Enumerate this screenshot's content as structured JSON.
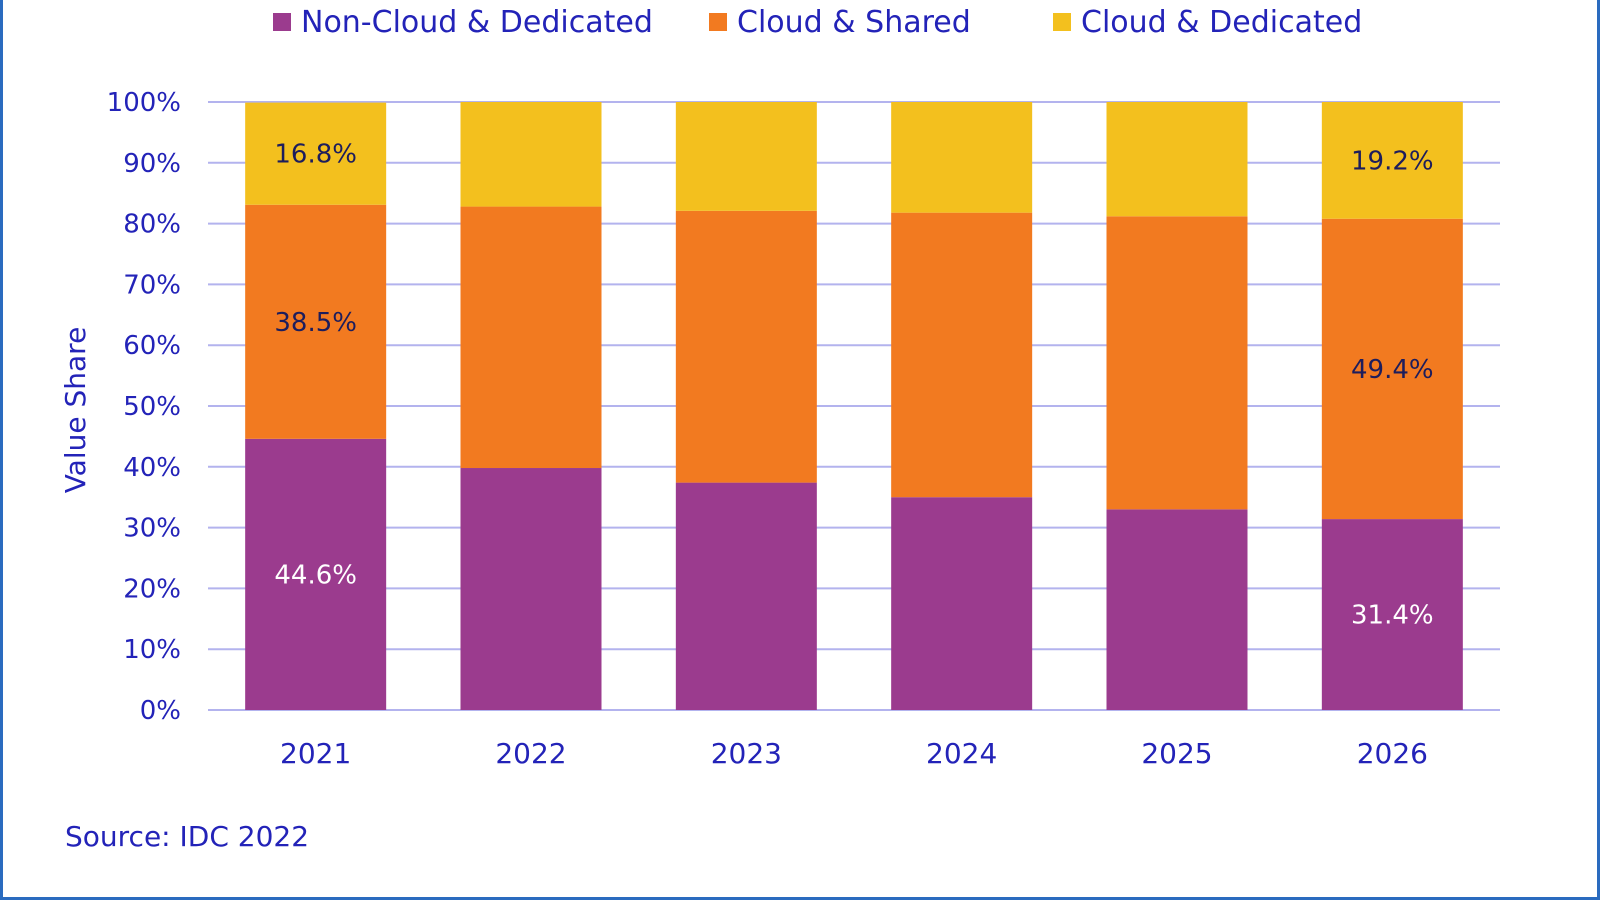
{
  "chart_data": {
    "type": "bar",
    "stacked": true,
    "categories": [
      "2021",
      "2022",
      "2023",
      "2024",
      "2025",
      "2026"
    ],
    "series": [
      {
        "name": "Non-Cloud & Dedicated",
        "color": "#9b3b8e",
        "values": [
          44.6,
          39.8,
          37.4,
          35.0,
          33.0,
          31.4
        ],
        "labels": [
          "44.6%",
          "",
          "",
          "",
          "",
          "31.4%"
        ],
        "label_color": "light"
      },
      {
        "name": "Cloud & Shared",
        "color": "#f27a20",
        "values": [
          38.5,
          43.0,
          44.7,
          46.8,
          48.2,
          49.4
        ],
        "labels": [
          "38.5%",
          "",
          "",
          "",
          "",
          "49.4%"
        ],
        "label_color": "dark"
      },
      {
        "name": "Cloud & Dedicated",
        "color": "#f3c01e",
        "values": [
          16.8,
          17.2,
          17.9,
          18.2,
          18.8,
          19.2
        ],
        "labels": [
          "16.8%",
          "",
          "",
          "",
          "",
          "19.2%"
        ],
        "label_color": "dark"
      }
    ],
    "yticks": [
      "0%",
      "10%",
      "20%",
      "30%",
      "40%",
      "50%",
      "60%",
      "70%",
      "80%",
      "90%",
      "100%"
    ],
    "ylim": [
      0,
      100
    ],
    "ylabel": "Value  Share",
    "xlabel": "",
    "title": "",
    "grid": true,
    "legend_position": "top",
    "gridline_color": "#b3b3ee",
    "text_color": "#2323b8"
  },
  "source": "Source: IDC 2022"
}
